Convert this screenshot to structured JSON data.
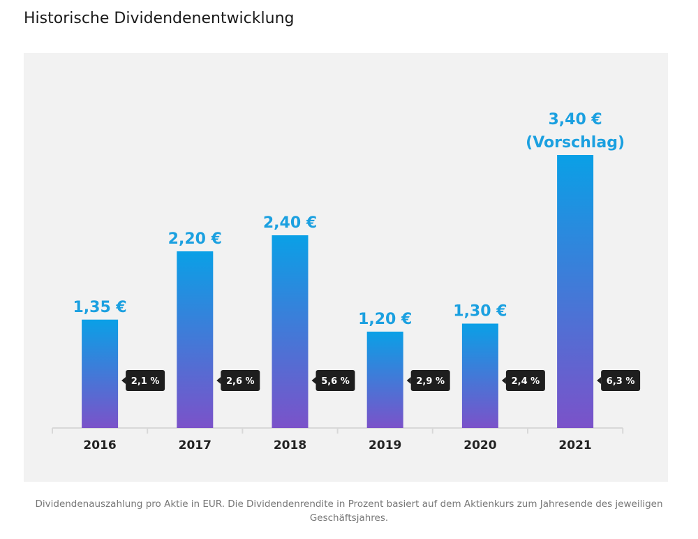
{
  "title": "Historische Dividendenentwicklung",
  "caption": "Dividendenauszahlung pro Aktie in EUR. Die Dividendenrendite in Prozent basiert auf dem Aktienkurs zum Jahresende des jeweiligen Geschäftsjahres.",
  "chart_data": {
    "type": "bar",
    "categories": [
      "2016",
      "2017",
      "2018",
      "2019",
      "2020",
      "2021"
    ],
    "values": [
      1.35,
      2.2,
      2.4,
      1.2,
      1.3,
      3.4
    ],
    "data_labels": [
      "1,35 €",
      "2,20 €",
      "2,40 €",
      "1,20 €",
      "1,30 €",
      "3,40 €"
    ],
    "label_notes": [
      "",
      "",
      "",
      "",
      "",
      "(Vorschlag)"
    ],
    "yield_labels": [
      "2,1 %",
      "2,6 %",
      "5,6 %",
      "2,9 %",
      "2,4 %",
      "6,3 %"
    ],
    "unit": "EUR",
    "grid": false,
    "colors": {
      "bar_top": "#0aa0e6",
      "bar_bottom": "#7b52c9",
      "label": "#1ba0e0",
      "yield_badge": "#1e1e1e",
      "axis": "#d8d8d8"
    }
  }
}
